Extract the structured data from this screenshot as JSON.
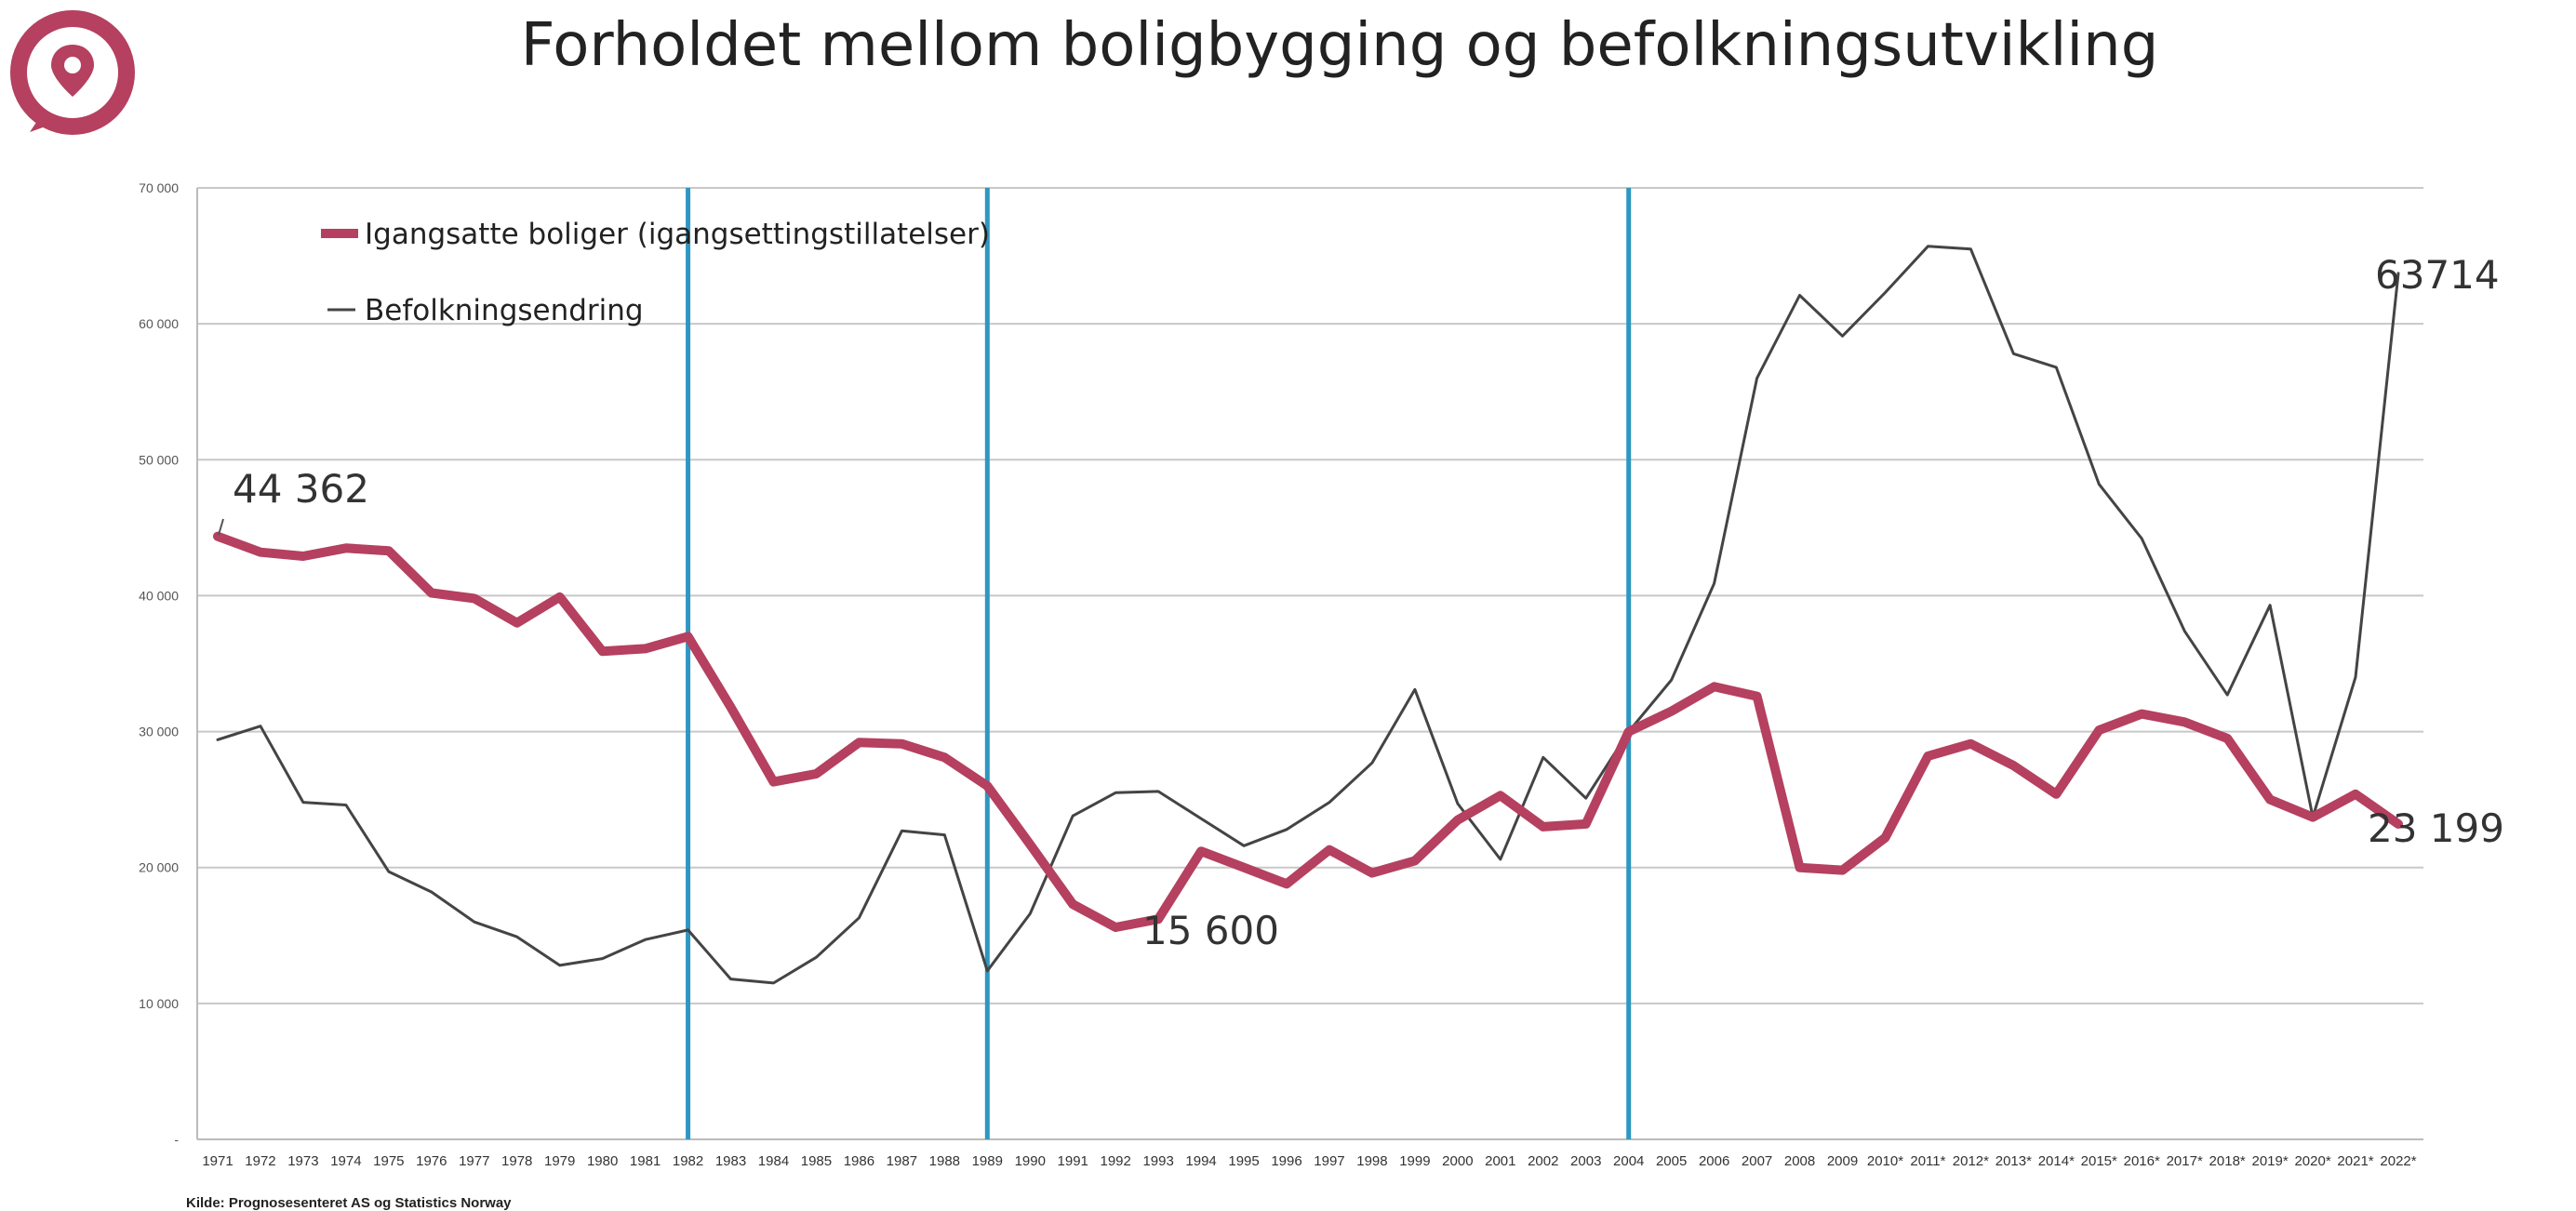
{
  "header": {
    "title": "Forholdet mellom boligbygging og befolkningsutvikling",
    "logo_icon": "location-pin-logo",
    "brand_color": "#b5405f"
  },
  "footer": {
    "source": "Kilde: Prognosesenteret AS og Statistics Norway"
  },
  "chart_data": {
    "type": "line",
    "title": "Forholdet mellom boligbygging og befolkningsutvikling",
    "xlabel": "",
    "ylabel": "",
    "ylim": [
      0,
      70000
    ],
    "y_ticks": [
      "-",
      "10 000",
      "20 000",
      "30 000",
      "40 000",
      "50 000",
      "60 000",
      "70 000"
    ],
    "grid": true,
    "legend_position": "top-left",
    "categories": [
      "1971",
      "1972",
      "1973",
      "1974",
      "1975",
      "1976",
      "1977",
      "1978",
      "1979",
      "1980",
      "1981",
      "1982",
      "1983",
      "1984",
      "1985",
      "1986",
      "1987",
      "1988",
      "1989",
      "1990",
      "1991",
      "1992",
      "1993",
      "1994",
      "1995",
      "1996",
      "1997",
      "1998",
      "1999",
      "2000",
      "2001",
      "2002",
      "2003",
      "2004",
      "2005",
      "2006",
      "2007",
      "2008",
      "2009",
      "2010*",
      "2011*",
      "2012*",
      "2013*",
      "2014*",
      "2015*",
      "2016*",
      "2017*",
      "2018*",
      "2019*",
      "2020*",
      "2021*",
      "2022*"
    ],
    "series": [
      {
        "name": "Igangsatte boliger (igangsettingstillatelser)",
        "color": "#b5405f",
        "values": [
          44362,
          43200,
          42900,
          43500,
          43300,
          40200,
          39800,
          38000,
          39900,
          35900,
          36100,
          37000,
          31800,
          26300,
          26900,
          29200,
          29100,
          28100,
          26000,
          21700,
          17300,
          15600,
          16200,
          21200,
          20000,
          18800,
          21300,
          19600,
          20500,
          23500,
          25300,
          23000,
          23200,
          30000,
          31500,
          33300,
          32600,
          20000,
          19800,
          22200,
          28200,
          29100,
          27500,
          25400,
          30100,
          31300,
          30700,
          29500,
          25000,
          23700,
          25400,
          23199
        ]
      },
      {
        "name": "Befolkningsendring",
        "color": "#444444",
        "values": [
          29400,
          30400,
          24800,
          24600,
          19700,
          18200,
          16000,
          14900,
          12800,
          13300,
          14700,
          15400,
          11800,
          11500,
          13400,
          16300,
          22700,
          22400,
          12400,
          16600,
          23800,
          25500,
          25600,
          23600,
          21600,
          22800,
          24800,
          27700,
          33100,
          24700,
          20600,
          28100,
          25100,
          30000,
          33800,
          40900,
          56000,
          62100,
          59100,
          62300,
          65700,
          65500,
          57800,
          56800,
          48200,
          44200,
          37400,
          32700,
          39300,
          23700,
          34000,
          63714
        ]
      }
    ],
    "annotations": [
      "44 362",
      "15 600",
      "63714",
      "23 199"
    ],
    "vertical_markers": [
      "1982",
      "1989",
      "2004"
    ],
    "marker_color": "#2e97c1"
  }
}
